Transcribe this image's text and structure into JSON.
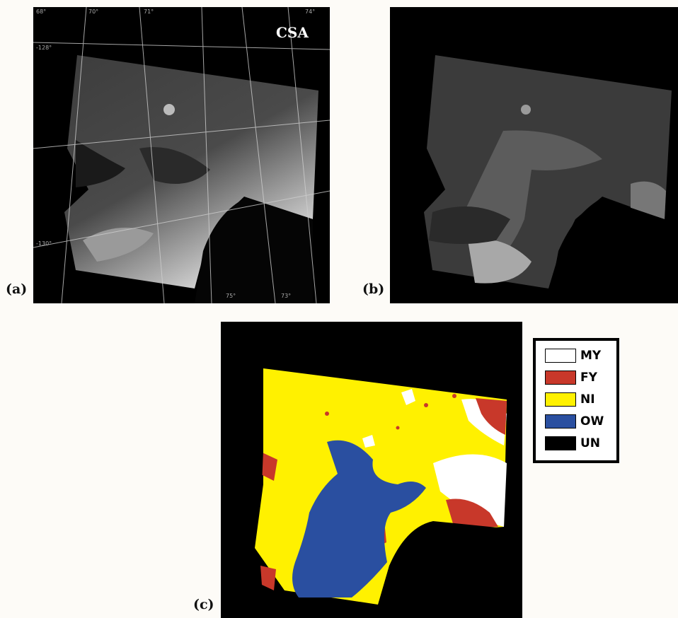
{
  "panels": {
    "a": {
      "label": "(a)",
      "badge": "CSA"
    },
    "b": {
      "label": "(b)"
    },
    "c": {
      "label": "(c)"
    }
  },
  "graticule_labels": {
    "top": [
      "68°",
      "70°",
      "71°",
      "74°"
    ],
    "left": [
      "-128°",
      "-130°"
    ],
    "bottom": [
      "75°",
      "73°"
    ]
  },
  "legend": {
    "items": [
      {
        "code": "MY",
        "color": "#ffffff"
      },
      {
        "code": "FY",
        "color": "#c8382a"
      },
      {
        "code": "NI",
        "color": "#fff100"
      },
      {
        "code": "OW",
        "color": "#2a4fa0"
      },
      {
        "code": "UN",
        "color": "#000000"
      }
    ]
  },
  "colors": {
    "background": "#fdfbf7",
    "frame": "#000000",
    "ice_my": "#ffffff",
    "ice_fy": "#c8382a",
    "ice_ni": "#fff100",
    "ice_ow": "#2a4fa0"
  }
}
